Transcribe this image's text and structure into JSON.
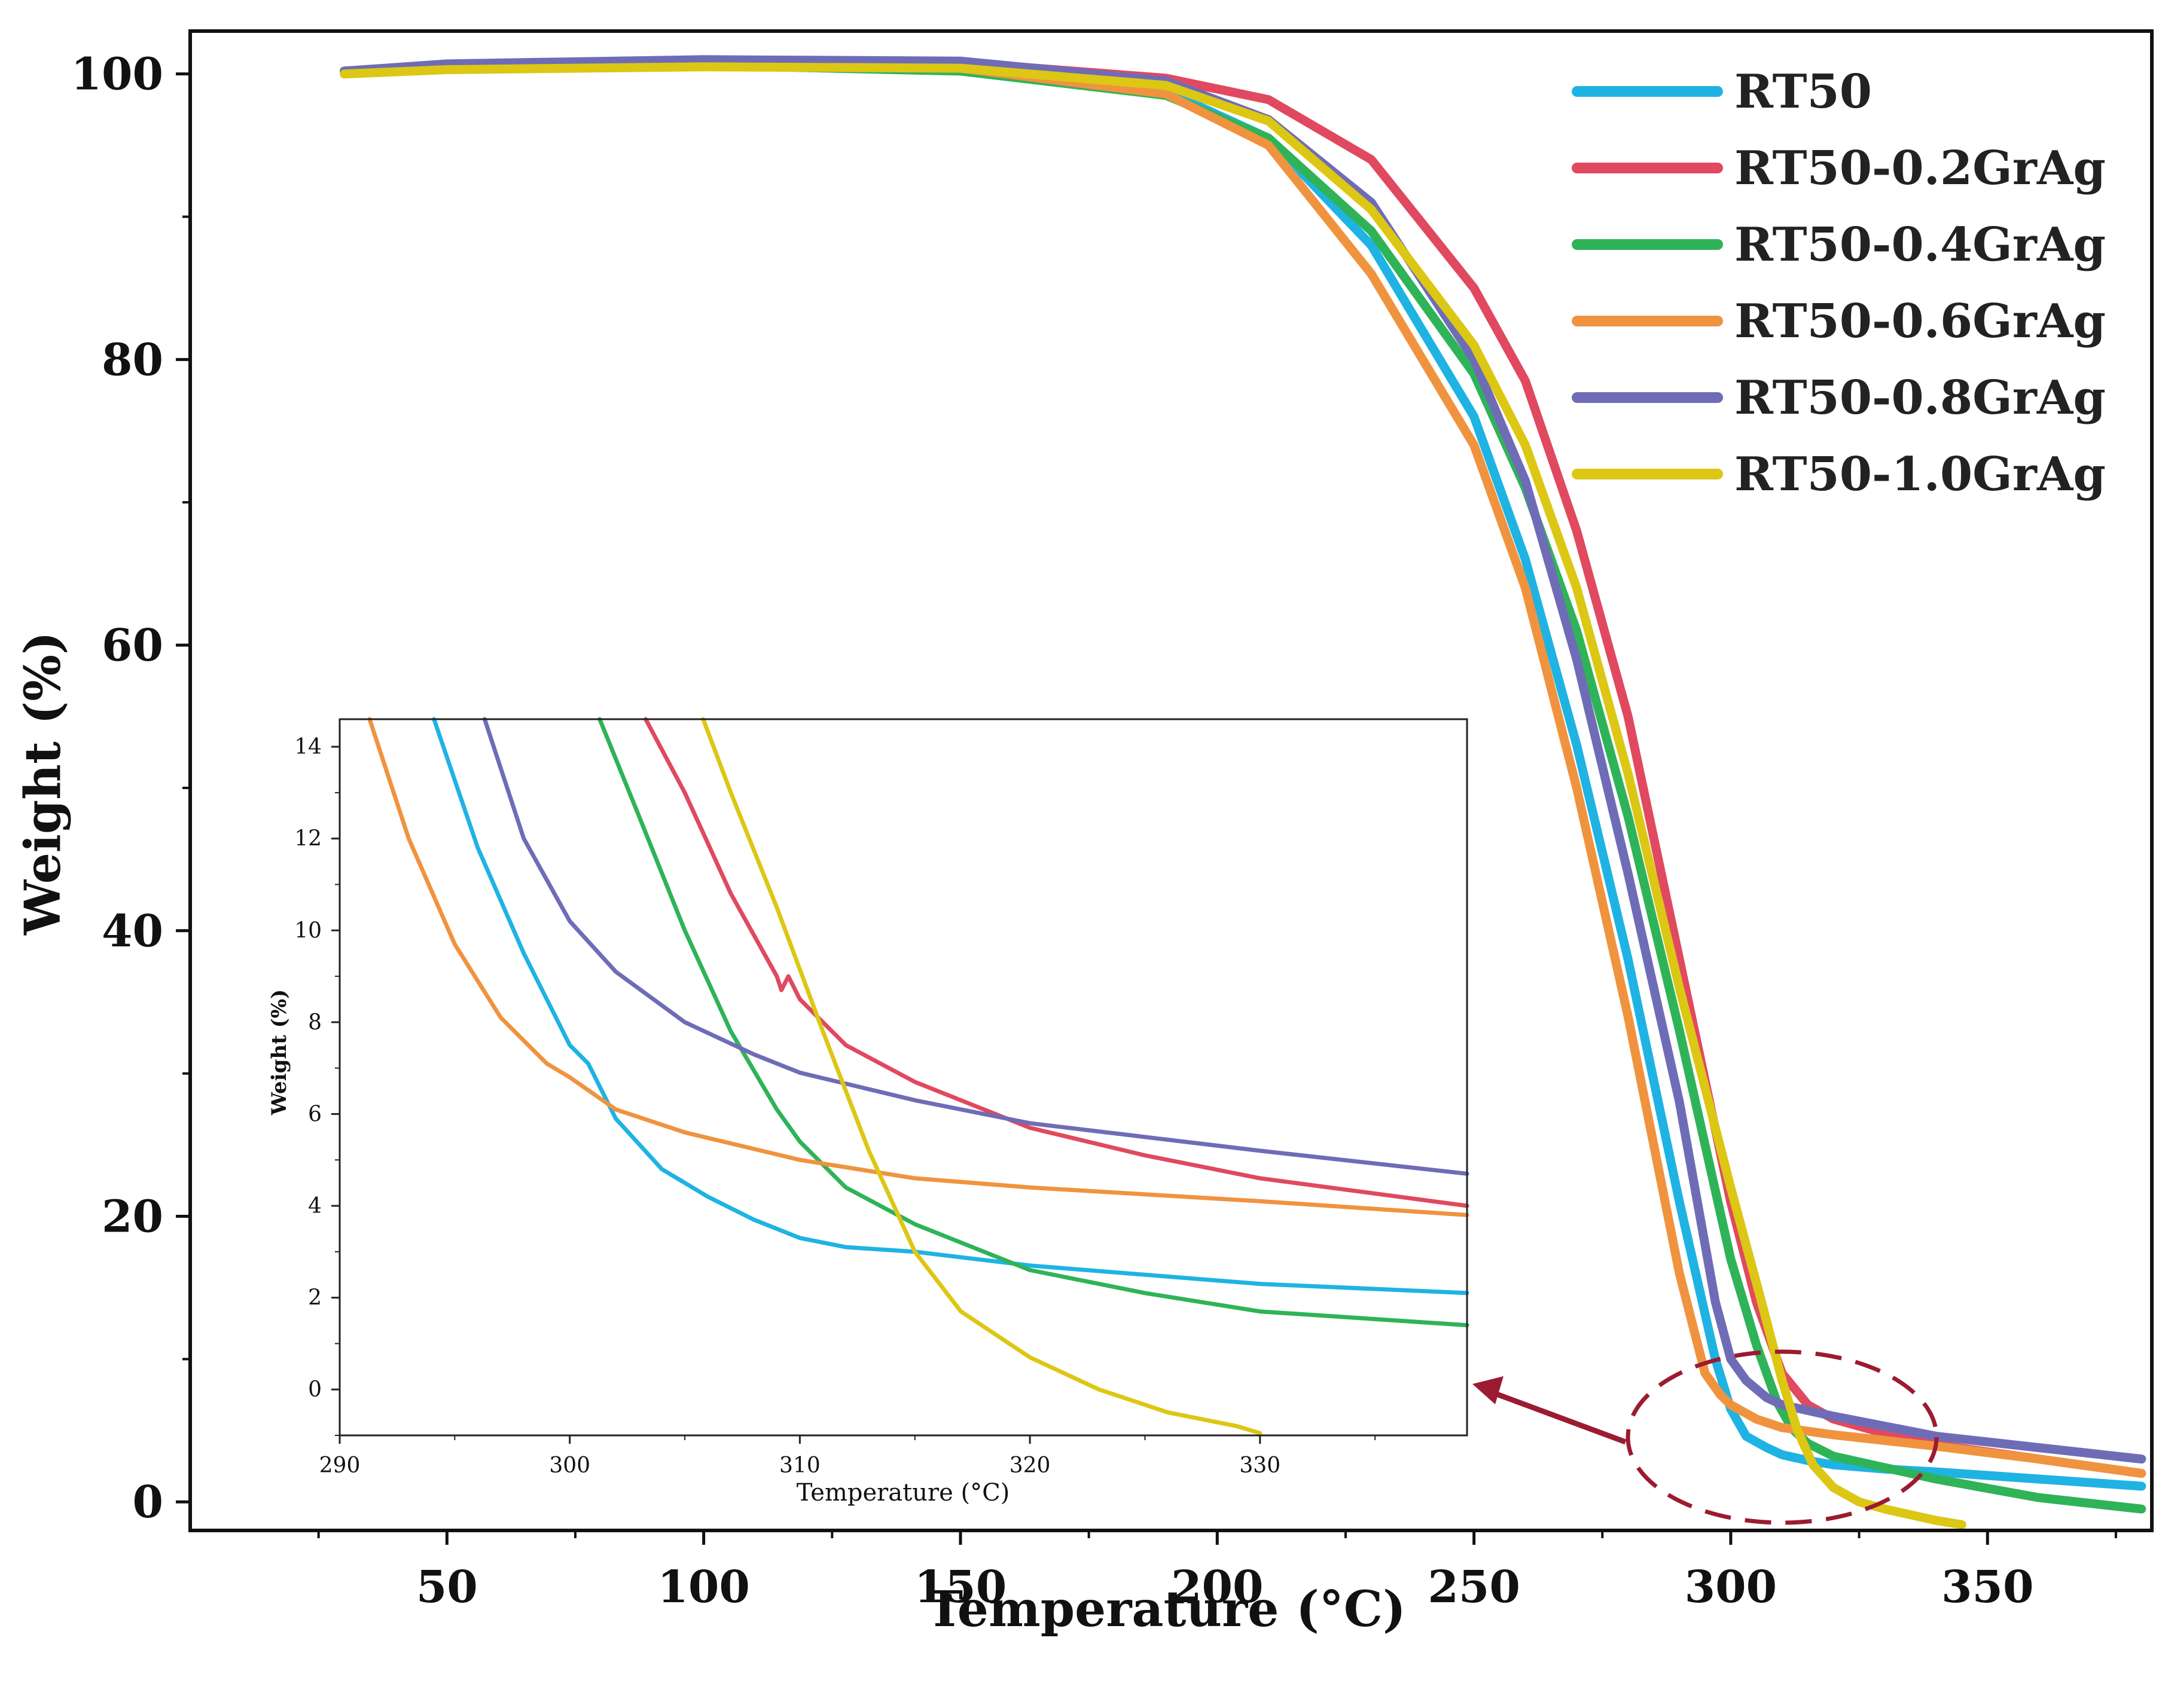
{
  "chart_data": {
    "type": "line",
    "main": {
      "xlabel": "Temperature (°C)",
      "ylabel": "Weight (%)",
      "xlim": [
        0,
        382
      ],
      "ylim": [
        -2,
        103
      ],
      "x_ticks": [
        50,
        100,
        150,
        200,
        250,
        300,
        350
      ],
      "y_ticks": [
        0,
        20,
        40,
        60,
        80,
        100
      ],
      "legend_position": "top-right"
    },
    "series": [
      {
        "name": "RT50",
        "color": "#1fb3e3",
        "points": [
          [
            30,
            100.2
          ],
          [
            50,
            100.5
          ],
          [
            100,
            100.7
          ],
          [
            150,
            100.5
          ],
          [
            190,
            98.8
          ],
          [
            210,
            95.5
          ],
          [
            230,
            88
          ],
          [
            250,
            76
          ],
          [
            260,
            66
          ],
          [
            270,
            53
          ],
          [
            280,
            38
          ],
          [
            290,
            21
          ],
          [
            297,
            10
          ],
          [
            300,
            6.5
          ],
          [
            303,
            4.6
          ],
          [
            307,
            3.8
          ],
          [
            310,
            3.3
          ],
          [
            315,
            2.9
          ],
          [
            320,
            2.6
          ],
          [
            330,
            2.3
          ],
          [
            340,
            2.1
          ],
          [
            360,
            1.6
          ],
          [
            380,
            1.1
          ]
        ]
      },
      {
        "name": "RT50-0.2GrAg",
        "color": "#e0495f",
        "points": [
          [
            30,
            100.2
          ],
          [
            50,
            100.6
          ],
          [
            100,
            100.9
          ],
          [
            150,
            100.8
          ],
          [
            190,
            99.7
          ],
          [
            210,
            98.2
          ],
          [
            230,
            94
          ],
          [
            250,
            85
          ],
          [
            260,
            78.5
          ],
          [
            270,
            68
          ],
          [
            280,
            55
          ],
          [
            290,
            38
          ],
          [
            300,
            21
          ],
          [
            305,
            14
          ],
          [
            310,
            9
          ],
          [
            315,
            6.8
          ],
          [
            320,
            5.8
          ],
          [
            330,
            4.8
          ],
          [
            340,
            4.0
          ],
          [
            360,
            3.0
          ],
          [
            380,
            2.0
          ]
        ]
      },
      {
        "name": "RT50-0.4GrAg",
        "color": "#2fb358",
        "points": [
          [
            30,
            100.2
          ],
          [
            50,
            100.5
          ],
          [
            100,
            100.6
          ],
          [
            150,
            100.2
          ],
          [
            190,
            98.5
          ],
          [
            210,
            95.5
          ],
          [
            230,
            89
          ],
          [
            250,
            79
          ],
          [
            260,
            71
          ],
          [
            270,
            61
          ],
          [
            280,
            48
          ],
          [
            290,
            33
          ],
          [
            300,
            17
          ],
          [
            305,
            11
          ],
          [
            309,
            7
          ],
          [
            312,
            5.1
          ],
          [
            315,
            4.1
          ],
          [
            320,
            3.2
          ],
          [
            330,
            2.4
          ],
          [
            340,
            1.6
          ],
          [
            360,
            0.3
          ],
          [
            380,
            -0.5
          ]
        ]
      },
      {
        "name": "RT50-0.6GrAg",
        "color": "#f0933f",
        "points": [
          [
            30,
            100.2
          ],
          [
            50,
            100.4
          ],
          [
            100,
            100.6
          ],
          [
            150,
            100.4
          ],
          [
            190,
            98.6
          ],
          [
            210,
            95
          ],
          [
            230,
            86
          ],
          [
            250,
            74
          ],
          [
            260,
            64
          ],
          [
            270,
            50
          ],
          [
            280,
            34
          ],
          [
            290,
            16
          ],
          [
            295,
            9
          ],
          [
            298,
            7.5
          ],
          [
            300,
            6.8
          ],
          [
            305,
            5.8
          ],
          [
            310,
            5.2
          ],
          [
            320,
            4.7
          ],
          [
            330,
            4.3
          ],
          [
            340,
            3.9
          ],
          [
            360,
            3.0
          ],
          [
            380,
            2.0
          ]
        ]
      },
      {
        "name": "RT50-0.8GrAg",
        "color": "#6f6cb7",
        "points": [
          [
            30,
            100.2
          ],
          [
            50,
            100.7
          ],
          [
            100,
            101
          ],
          [
            150,
            100.9
          ],
          [
            190,
            99.5
          ],
          [
            210,
            96.8
          ],
          [
            230,
            91
          ],
          [
            250,
            80
          ],
          [
            260,
            71.5
          ],
          [
            270,
            59
          ],
          [
            280,
            44
          ],
          [
            290,
            28
          ],
          [
            297,
            14
          ],
          [
            300,
            10
          ],
          [
            303,
            8.5
          ],
          [
            307,
            7.3
          ],
          [
            310,
            6.8
          ],
          [
            320,
            6.0
          ],
          [
            330,
            5.3
          ],
          [
            340,
            4.6
          ],
          [
            360,
            3.8
          ],
          [
            380,
            3.0
          ]
        ]
      },
      {
        "name": "RT50-1.0GrAg",
        "color": "#dcc714",
        "points": [
          [
            30,
            100
          ],
          [
            50,
            100.3
          ],
          [
            100,
            100.5
          ],
          [
            150,
            100.4
          ],
          [
            190,
            99.2
          ],
          [
            210,
            96.7
          ],
          [
            230,
            90.5
          ],
          [
            250,
            81
          ],
          [
            260,
            74
          ],
          [
            270,
            64
          ],
          [
            280,
            51
          ],
          [
            290,
            36
          ],
          [
            300,
            22
          ],
          [
            306,
            14
          ],
          [
            310,
            8.5
          ],
          [
            313,
            5
          ],
          [
            316,
            2.6
          ],
          [
            320,
            1.0
          ],
          [
            325,
            0
          ],
          [
            330,
            -0.5
          ],
          [
            340,
            -1.3
          ],
          [
            345,
            -1.6
          ]
        ]
      }
    ],
    "inset": {
      "xlabel": "Temperature (°C)",
      "ylabel": "Weight (%)",
      "xlim": [
        290,
        339
      ],
      "ylim": [
        -1,
        14.6
      ],
      "x_ticks": [
        290,
        300,
        310,
        320,
        330
      ],
      "y_ticks": [
        0,
        2,
        4,
        6,
        8,
        10,
        12,
        14
      ],
      "series": [
        {
          "name": "RT50",
          "color": "#1fb3e3",
          "points": [
            [
              294.1,
              14.6
            ],
            [
              296,
              11.8
            ],
            [
              298,
              9.5
            ],
            [
              300,
              7.5
            ],
            [
              300.8,
              7.1
            ],
            [
              301,
              6.9
            ],
            [
              302,
              5.9
            ],
            [
              304,
              4.8
            ],
            [
              305,
              4.5
            ],
            [
              306,
              4.2
            ],
            [
              308,
              3.7
            ],
            [
              310,
              3.3
            ],
            [
              312,
              3.1
            ],
            [
              315,
              3.0
            ],
            [
              320,
              2.7
            ],
            [
              330,
              2.3
            ],
            [
              339,
              2.1
            ]
          ]
        },
        {
          "name": "RT50-0.2GrAg",
          "color": "#e0495f",
          "points": [
            [
              303.3,
              14.6
            ],
            [
              305,
              13
            ],
            [
              307,
              10.8
            ],
            [
              309,
              9
            ],
            [
              309.2,
              8.7
            ],
            [
              309.5,
              9.0
            ],
            [
              310,
              8.5
            ],
            [
              312,
              7.5
            ],
            [
              315,
              6.7
            ],
            [
              320,
              5.7
            ],
            [
              325,
              5.1
            ],
            [
              330,
              4.6
            ],
            [
              339,
              4.0
            ]
          ]
        },
        {
          "name": "RT50-0.4GrAg",
          "color": "#2fb358",
          "points": [
            [
              301.3,
              14.6
            ],
            [
              303,
              12.5
            ],
            [
              305,
              10
            ],
            [
              307,
              7.8
            ],
            [
              309,
              6.1
            ],
            [
              310,
              5.4
            ],
            [
              312,
              4.4
            ],
            [
              315,
              3.6
            ],
            [
              318,
              3.0
            ],
            [
              320,
              2.6
            ],
            [
              325,
              2.1
            ],
            [
              330,
              1.7
            ],
            [
              339,
              1.4
            ]
          ]
        },
        {
          "name": "RT50-0.6GrAg",
          "color": "#f0933f",
          "points": [
            [
              291.3,
              14.6
            ],
            [
              293,
              12
            ],
            [
              295,
              9.7
            ],
            [
              297,
              8.1
            ],
            [
              299,
              7.1
            ],
            [
              300,
              6.8
            ],
            [
              302,
              6.1
            ],
            [
              305,
              5.6
            ],
            [
              310,
              5.0
            ],
            [
              315,
              4.6
            ],
            [
              320,
              4.4
            ],
            [
              330,
              4.1
            ],
            [
              339,
              3.8
            ]
          ]
        },
        {
          "name": "RT50-0.8GrAg",
          "color": "#6f6cb7",
          "points": [
            [
              296.3,
              14.6
            ],
            [
              298,
              12
            ],
            [
              300,
              10.2
            ],
            [
              302,
              9.1
            ],
            [
              305,
              8.0
            ],
            [
              308,
              7.3
            ],
            [
              310,
              6.9
            ],
            [
              315,
              6.3
            ],
            [
              320,
              5.8
            ],
            [
              330,
              5.2
            ],
            [
              339,
              4.7
            ]
          ]
        },
        {
          "name": "RT50-1.0GrAg",
          "color": "#dcc714",
          "points": [
            [
              305.8,
              14.6
            ],
            [
              307,
              13
            ],
            [
              309,
              10.5
            ],
            [
              311,
              7.8
            ],
            [
              313,
              5.2
            ],
            [
              315,
              3.0
            ],
            [
              317,
              1.7
            ],
            [
              320,
              0.7
            ],
            [
              323,
              0
            ],
            [
              326,
              -0.5
            ],
            [
              329,
              -0.8
            ],
            [
              330,
              -0.95
            ]
          ]
        }
      ]
    }
  }
}
